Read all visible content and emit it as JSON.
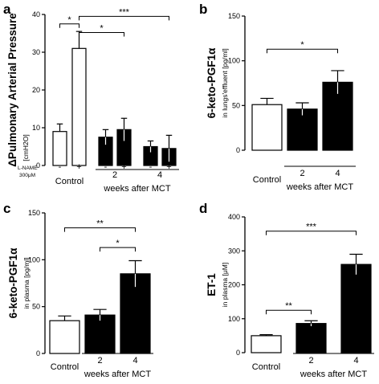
{
  "chart_data": [
    {
      "type": "bar",
      "panel": "a",
      "ylabel_main": "ΔPulmonary Arterial Pressure",
      "ylabel_unit": "[cmH2O]",
      "ylim": [
        0,
        40
      ],
      "yticks": [
        0,
        10,
        20,
        30,
        40
      ],
      "bars": [
        {
          "value": 9,
          "error": 2,
          "fill": "white",
          "lname": "-"
        },
        {
          "value": 31,
          "error": 4.5,
          "fill": "white",
          "lname": "+"
        },
        {
          "value": 7.5,
          "error": 2,
          "fill": "black",
          "lname": "-"
        },
        {
          "value": 9.5,
          "error": 3,
          "fill": "black",
          "lname": "+"
        },
        {
          "value": 5,
          "error": 1.5,
          "fill": "black",
          "lname": "-"
        },
        {
          "value": 4.5,
          "error": 3.5,
          "fill": "black",
          "lname": "+"
        }
      ],
      "lname_label_1": "L-NAME",
      "lname_label_2": "300μM",
      "group_labels": [
        "Control",
        "2",
        "4"
      ],
      "group_caption": "weeks after MCT",
      "significance": [
        {
          "from": 0,
          "to": 1,
          "label": "*"
        },
        {
          "from": 1,
          "to": 3,
          "label": "*"
        },
        {
          "from": 1,
          "to": 5,
          "label": "***"
        }
      ]
    },
    {
      "type": "bar",
      "panel": "b",
      "ylabel_main": "6-keto-PGF1α",
      "ylabel_unit": "in lungs'effluent [pg/ml]",
      "ylim": [
        0,
        150
      ],
      "yticks": [
        0,
        50,
        100,
        150
      ],
      "bars": [
        {
          "value": 51,
          "error": 7,
          "fill": "white"
        },
        {
          "value": 46,
          "error": 7,
          "fill": "black"
        },
        {
          "value": 76,
          "error": 13,
          "fill": "black"
        }
      ],
      "group_labels": [
        "Control",
        "2",
        "4"
      ],
      "group_caption": "weeks after MCT",
      "significance": [
        {
          "from": 0,
          "to": 2,
          "label": "*"
        }
      ]
    },
    {
      "type": "bar",
      "panel": "c",
      "ylabel_main": "6-keto-PGF1α",
      "ylabel_unit": "in plasma [pg/ml]",
      "ylim": [
        0,
        150
      ],
      "yticks": [
        0,
        50,
        100,
        150
      ],
      "bars": [
        {
          "value": 35,
          "error": 5,
          "fill": "white"
        },
        {
          "value": 41,
          "error": 6,
          "fill": "black"
        },
        {
          "value": 85,
          "error": 14,
          "fill": "black"
        }
      ],
      "group_labels": [
        "Control",
        "2",
        "4"
      ],
      "group_caption": "weeks after MCT",
      "significance": [
        {
          "from": 0,
          "to": 2,
          "label": "**"
        },
        {
          "from": 1,
          "to": 2,
          "label": "*"
        }
      ]
    },
    {
      "type": "bar",
      "panel": "d",
      "ylabel_main": "ET-1",
      "ylabel_unit": "in plasma [μM]",
      "ylim": [
        0,
        400
      ],
      "yticks": [
        0,
        100,
        200,
        300,
        400
      ],
      "bars": [
        {
          "value": 50,
          "error": 3,
          "fill": "white"
        },
        {
          "value": 86,
          "error": 8,
          "fill": "black"
        },
        {
          "value": 260,
          "error": 30,
          "fill": "black"
        }
      ],
      "group_labels": [
        "Control",
        "2",
        "4"
      ],
      "group_caption": "weeks after MCT",
      "significance": [
        {
          "from": 0,
          "to": 1,
          "label": "**"
        },
        {
          "from": 0,
          "to": 2,
          "label": "***"
        }
      ]
    }
  ]
}
